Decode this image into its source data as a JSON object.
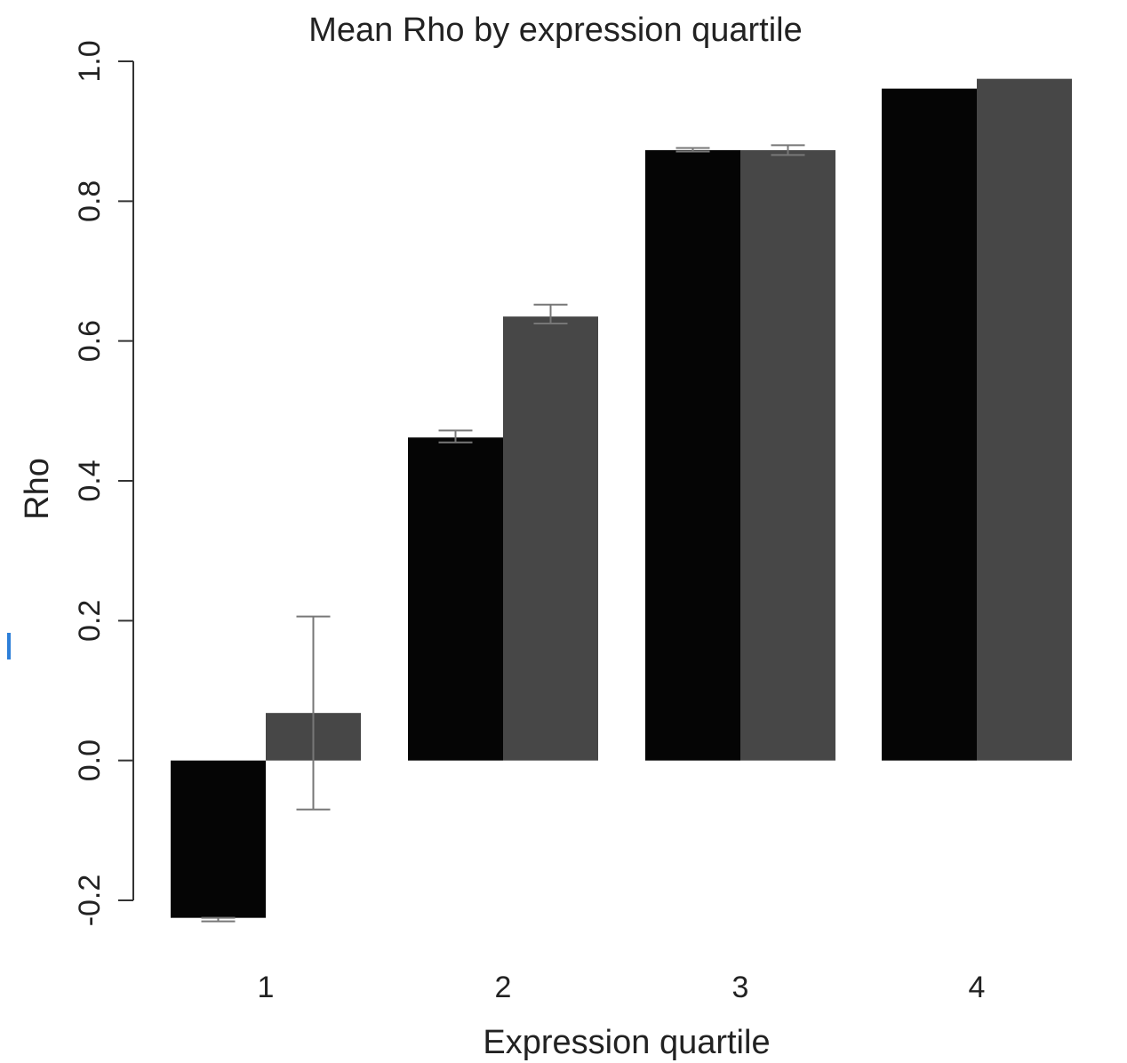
{
  "chart_data": {
    "type": "bar",
    "title": "Mean Rho by expression quartile",
    "xlabel": "Expression quartile",
    "ylabel": "Rho",
    "categories": [
      "1",
      "2",
      "3",
      "4"
    ],
    "ylim": [
      -0.2,
      1.0
    ],
    "yticks": [
      "-0.2",
      "0.0",
      "0.2",
      "0.4",
      "0.6",
      "0.8",
      "1.0"
    ],
    "grid": false,
    "legend": "none",
    "series": [
      {
        "color": "#050505",
        "values": [
          -0.225,
          0.462,
          0.873,
          0.961
        ],
        "err_low": [
          -0.23,
          0.455,
          0.871,
          0.961
        ],
        "err_high": [
          -0.225,
          0.472,
          0.876,
          0.961
        ]
      },
      {
        "color": "#474747",
        "values": [
          0.068,
          0.635,
          0.873,
          0.975
        ],
        "err_low": [
          -0.07,
          0.625,
          0.866,
          0.975
        ],
        "err_high": [
          0.206,
          0.652,
          0.88,
          0.975
        ]
      }
    ]
  }
}
